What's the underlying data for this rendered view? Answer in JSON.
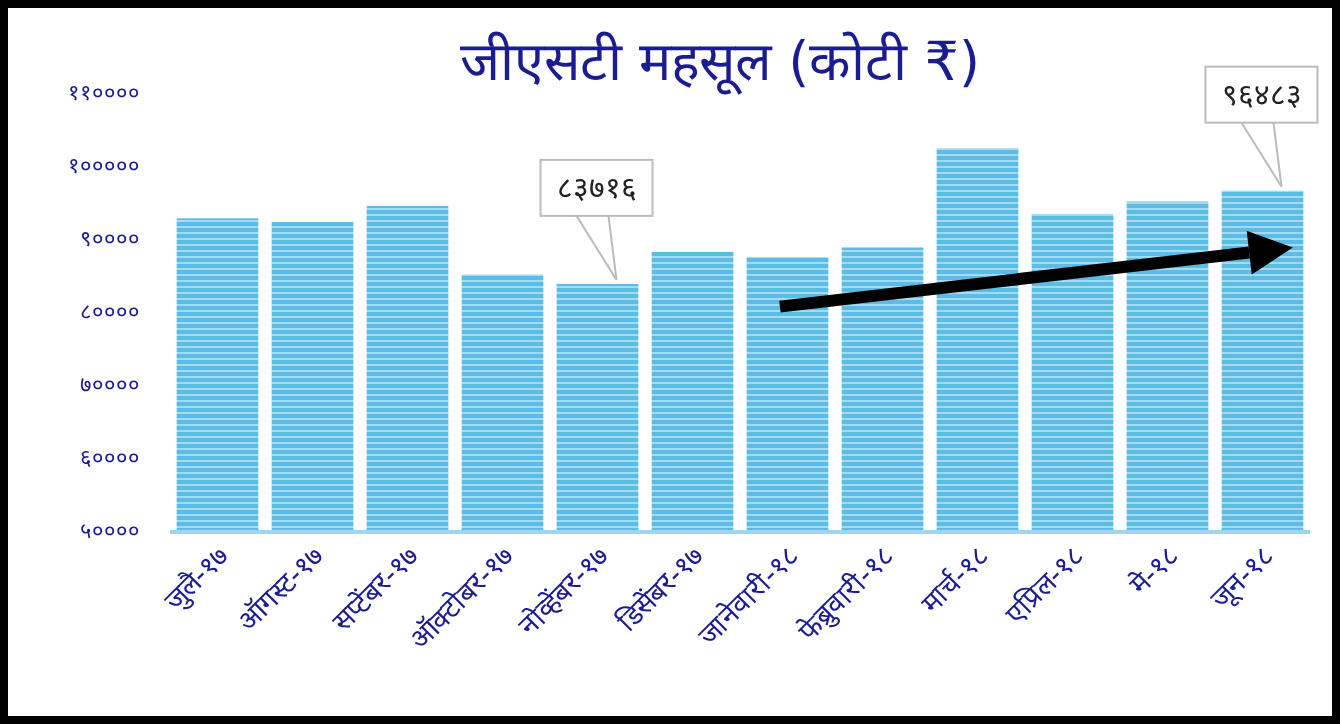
{
  "chart_data": {
    "type": "bar",
    "title": "जीएसटी महसूल (कोटी ₹)",
    "categories": [
      "जुलै-१७",
      "ऑगस्ट-१७",
      "सप्टेंबर-१७",
      "ऑक्टोबर-१७",
      "नोव्हेंबर-१७",
      "डिसेंबर-१७",
      "जानेवारी-१८",
      "फेब्रुवारी-१८",
      "मार्च-१८",
      "एप्रिल-१८",
      "मे-१८",
      "जून-१८"
    ],
    "values": [
      92700,
      92200,
      94400,
      85000,
      83716,
      88100,
      87400,
      88700,
      102300,
      93300,
      95000,
      96483
    ],
    "color": "#5bbde6",
    "ylim": [
      50000,
      110000
    ],
    "yticks": [
      {
        "value": 50000,
        "label": "५००००"
      },
      {
        "value": 60000,
        "label": "६००००"
      },
      {
        "value": 70000,
        "label": "७००००"
      },
      {
        "value": 80000,
        "label": "८००००"
      },
      {
        "value": 90000,
        "label": "९००००"
      },
      {
        "value": 100000,
        "label": "१०००००"
      },
      {
        "value": 110000,
        "label": "११००००"
      }
    ],
    "annotations": [
      {
        "text": "८३७१६",
        "x": "नोव्हेंबर-१७",
        "y": 83716
      },
      {
        "text": "९६४८३",
        "x": "जून-१८",
        "y": 96483
      }
    ],
    "grid": false
  }
}
